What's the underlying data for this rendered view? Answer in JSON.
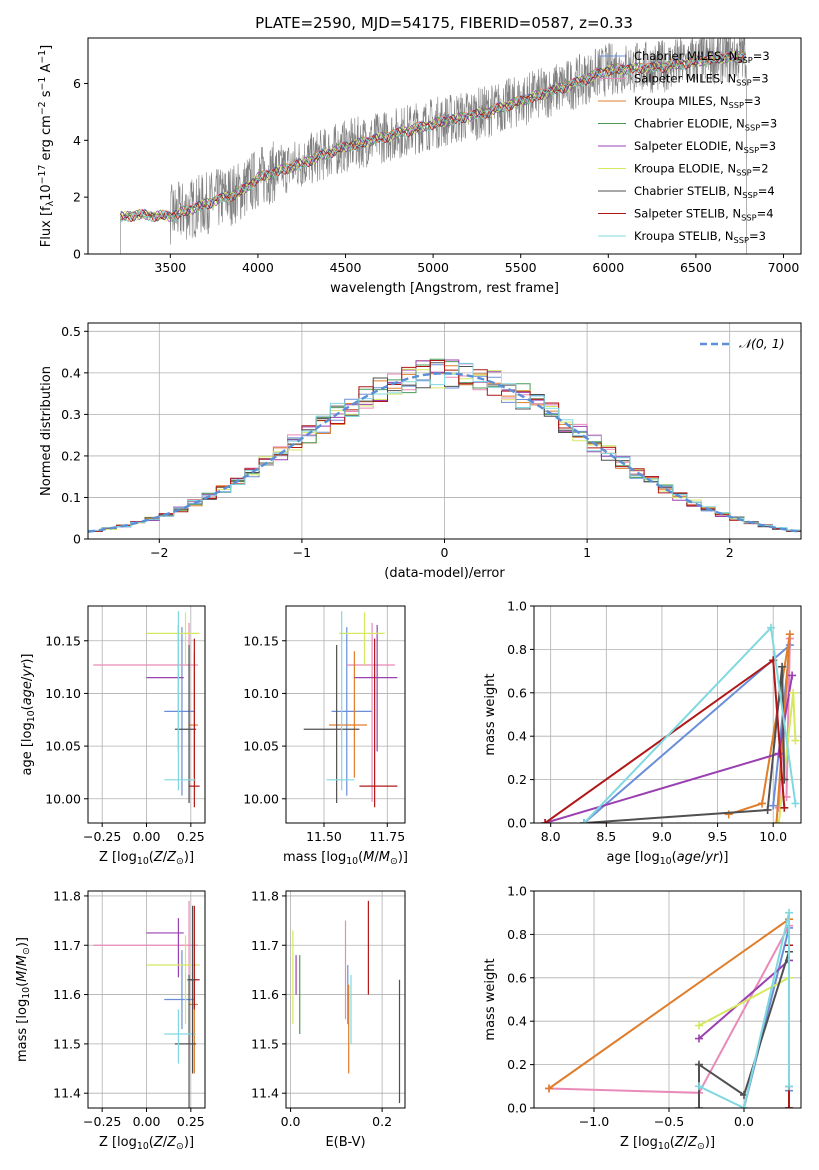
{
  "title": "PLATE=2590, MJD=54175, FIBERID=0587, z=0.33",
  "models": [
    {
      "name": "Chabrier MILES, N<sub>SSP</sub>=3",
      "color": "#6a8fd8"
    },
    {
      "name": "Salpeter MILES, N<sub>SSP</sub>=3",
      "color": "#e98ab8"
    },
    {
      "name": "Kroupa MILES, N<sub>SSP</sub>=3",
      "color": "#e07d2a"
    },
    {
      "name": "Chabrier ELODIE, N<sub>SSP</sub>=3",
      "color": "#4c9a58"
    },
    {
      "name": "Salpeter ELODIE, N<sub>SSP</sub>=3",
      "color": "#9a40b0"
    },
    {
      "name": "Kroupa ELODIE, N<sub>SSP</sub>=2",
      "color": "#d6e860"
    },
    {
      "name": "Chabrier STELIB, N<sub>SSP</sub>=4",
      "color": "#505050"
    },
    {
      "name": "Salpeter STELIB, N<sub>SSP</sub>=4",
      "color": "#b01818"
    },
    {
      "name": "Kroupa STELIB, N<sub>SSP</sub>=3",
      "color": "#80d8e0"
    }
  ],
  "chart_data": [
    {
      "id": "spectrum",
      "type": "line",
      "xlabel": "wavelength [Angstrom, rest frame]",
      "ylabel": "Flux [f<sub>λ</sub>10<sup>−17</sup> erg cm<sup>−2</sup> s<sup>−1</sup> A<sup>−1</sup>]",
      "xlim": [
        3030,
        7100
      ],
      "ylim": [
        0,
        7.6
      ],
      "xticks": [
        3500,
        4000,
        4500,
        5000,
        5500,
        6000,
        6500,
        7000
      ],
      "yticks": [
        0,
        2,
        4,
        6
      ],
      "data_color": "#808080",
      "data_start": 3215,
      "data_end": 6790,
      "continuum": {
        "x": [
          3215,
          3300,
          3500,
          3900,
          4000,
          4200,
          4500,
          4700,
          5000,
          5300,
          5600,
          5800,
          6000,
          6300,
          6600,
          6790
        ],
        "y": [
          1.3,
          1.4,
          1.35,
          2.2,
          2.7,
          3.1,
          3.8,
          4.1,
          4.6,
          5.0,
          5.6,
          6.0,
          6.5,
          6.6,
          6.9,
          7.0
        ]
      }
    },
    {
      "id": "residuals",
      "type": "histogram",
      "xlabel": "(data-model)/error",
      "ylabel": "Normed distribution",
      "xlim": [
        -2.5,
        2.5
      ],
      "ylim": [
        0,
        0.52
      ],
      "xticks": [
        -2,
        -1,
        0,
        1,
        2
      ],
      "yticks": [
        0,
        0.1,
        0.2,
        0.3,
        0.4,
        0.5
      ],
      "reference_label": "𝒩(0, 1)",
      "reference_color": "#5b8fd6",
      "bin_width": 0.1
    },
    {
      "id": "age_vs_Z",
      "type": "errorbar",
      "xlabel": "Z [log<sub>10</sub>(<i>Z</i>/<i>Z</i><sub>⊙</sub>)]",
      "ylabel": "age  [log<sub>10</sub>(<i>age</i>/<i>yr</i>)]",
      "xlim": [
        -0.33,
        0.33
      ],
      "ylim": [
        9.977,
        10.183
      ],
      "xticks": [
        -0.25,
        0,
        0.25
      ],
      "xticklabels": [
        "−0.25",
        "0.00",
        "0.25"
      ],
      "yticks": [
        10.0,
        10.05,
        10.1,
        10.15
      ],
      "yticklabels": [
        "10.00",
        "10.05",
        "10.10",
        "10.15"
      ],
      "points": [
        {
          "model": 0,
          "x": 0.2,
          "xerr": [
            0.1,
            0.07
          ],
          "y": 10.083,
          "yerr": [
            0.08,
            0.08
          ]
        },
        {
          "model": 1,
          "x": 0.24,
          "xerr": [
            0.54,
            0.05
          ],
          "y": 10.127,
          "yerr": [
            0.13,
            0.04
          ]
        },
        {
          "model": 2,
          "x": 0.27,
          "xerr": [
            0.03,
            0.02
          ],
          "y": 10.07,
          "yerr": [
            0.05,
            0.07
          ]
        },
        {
          "model": 4,
          "x": 0.18,
          "xerr": [
            0.18,
            0.03
          ],
          "y": 10.115,
          "yerr": [
            0.07,
            0.05
          ]
        },
        {
          "model": 5,
          "x": 0.22,
          "xerr": [
            0.22,
            0.08
          ],
          "y": 10.157,
          "yerr": [
            0.03,
            0.02
          ]
        },
        {
          "model": 6,
          "x": 0.24,
          "xerr": [
            0.08,
            0.04
          ],
          "y": 10.066,
          "yerr": [
            0.07,
            0.08
          ]
        },
        {
          "model": 7,
          "x": 0.27,
          "xerr": [
            0.03,
            0.03
          ],
          "y": 10.012,
          "yerr": [
            0.02,
            0.14
          ]
        },
        {
          "model": 8,
          "x": 0.18,
          "xerr": [
            0.08,
            0.1
          ],
          "y": 10.018,
          "yerr": [
            0.01,
            0.16
          ]
        }
      ]
    },
    {
      "id": "age_vs_mass",
      "type": "errorbar",
      "xlabel": "mass [log<sub>10</sub>(<i>M</i>/<i>M</i><sub>⊙</sub>)]",
      "ylabel": "",
      "xlim": [
        11.35,
        11.82
      ],
      "ylim": [
        9.977,
        10.183
      ],
      "xticks": [
        11.5,
        11.75
      ],
      "xticklabels": [
        "11.50",
        "11.75"
      ],
      "yticks": [
        10.0,
        10.05,
        10.1,
        10.15
      ],
      "yticklabels": [
        "10.00",
        "10.05",
        "10.10",
        "10.15"
      ],
      "points": [
        {
          "model": 0,
          "x": 11.59,
          "xerr": [
            0.06,
            0.1
          ],
          "y": 10.083,
          "yerr": [
            0.08,
            0.08
          ]
        },
        {
          "model": 1,
          "x": 11.69,
          "xerr": [
            0.1,
            0.09
          ],
          "y": 10.127,
          "yerr": [
            0.13,
            0.04
          ]
        },
        {
          "model": 2,
          "x": 11.62,
          "xerr": [
            0.1,
            0.05
          ],
          "y": 10.07,
          "yerr": [
            0.05,
            0.07
          ]
        },
        {
          "model": 4,
          "x": 11.71,
          "xerr": [
            0.09,
            0.08
          ],
          "y": 10.115,
          "yerr": [
            0.07,
            0.05
          ]
        },
        {
          "model": 5,
          "x": 11.66,
          "xerr": [
            0.1,
            0.08
          ],
          "y": 10.157,
          "yerr": [
            0.03,
            0.02
          ]
        },
        {
          "model": 6,
          "x": 11.55,
          "xerr": [
            0.13,
            0.09
          ],
          "y": 10.066,
          "yerr": [
            0.07,
            0.08
          ]
        },
        {
          "model": 7,
          "x": 11.7,
          "xerr": [
            0.06,
            0.09
          ],
          "y": 10.012,
          "yerr": [
            0.02,
            0.14
          ]
        },
        {
          "model": 8,
          "x": 11.57,
          "xerr": [
            0.06,
            0.05
          ],
          "y": 10.018,
          "yerr": [
            0.01,
            0.16
          ]
        }
      ]
    },
    {
      "id": "weight_vs_age",
      "type": "line",
      "xlabel": "age  [log<sub>10</sub>(<i>age</i>/<i>yr</i>)]",
      "ylabel": "mass weight",
      "xlim": [
        7.85,
        10.25
      ],
      "ylim": [
        0,
        1
      ],
      "xticks": [
        8.0,
        8.5,
        9.0,
        9.5,
        10.0
      ],
      "xticklabels": [
        "8.0",
        "8.5",
        "9.0",
        "9.5",
        "10.0"
      ],
      "yticks": [
        0,
        0.2,
        0.4,
        0.6,
        0.8,
        1.0
      ],
      "yticklabels": [
        "0.0",
        "0.2",
        "0.4",
        "0.6",
        "0.8",
        "1.0"
      ],
      "series": [
        {
          "model": 0,
          "x": [
            8.3,
            10.15,
            10.0
          ],
          "y": [
            0.0,
            0.82,
            0.08
          ]
        },
        {
          "model": 1,
          "x": [
            10.05,
            10.15,
            10.12
          ],
          "y": [
            0.07,
            0.85,
            0.12
          ]
        },
        {
          "model": 2,
          "x": [
            9.6,
            9.9,
            10.15,
            10.03
          ],
          "y": [
            0.04,
            0.09,
            0.87,
            0.0
          ]
        },
        {
          "model": 4,
          "x": [
            7.95,
            10.05,
            10.17
          ],
          "y": [
            0.0,
            0.32,
            0.68
          ]
        },
        {
          "model": 5,
          "x": [
            10.05,
            10.18,
            10.2
          ],
          "y": [
            0.0,
            0.6,
            0.38
          ]
        },
        {
          "model": 6,
          "x": [
            8.3,
            9.95,
            10.08,
            10.1
          ],
          "y": [
            0.0,
            0.06,
            0.72,
            0.2
          ]
        },
        {
          "model": 7,
          "x": [
            7.95,
            10.0,
            10.1
          ],
          "y": [
            0.0,
            0.75,
            0.07
          ]
        },
        {
          "model": 8,
          "x": [
            8.3,
            9.98,
            10.2
          ],
          "y": [
            0.0,
            0.9,
            0.09
          ]
        }
      ]
    },
    {
      "id": "mass_vs_Z",
      "type": "errorbar",
      "xlabel": "Z [log<sub>10</sub>(<i>Z</i>/<i>Z</i><sub>⊙</sub>)]",
      "ylabel": "mass [log<sub>10</sub>(<i>M</i>/<i>M</i><sub>⊙</sub>)]",
      "xlim": [
        -0.33,
        0.33
      ],
      "ylim": [
        11.37,
        11.81
      ],
      "xticks": [
        -0.25,
        0,
        0.25
      ],
      "xticklabels": [
        "−0.25",
        "0.00",
        "0.25"
      ],
      "yticks": [
        11.4,
        11.5,
        11.6,
        11.7,
        11.8
      ],
      "yticklabels": [
        "11.4",
        "11.5",
        "11.6",
        "11.7",
        "11.8"
      ],
      "points": [
        {
          "model": 0,
          "x": 0.2,
          "xerr": [
            0.1,
            0.07
          ],
          "y": 11.59,
          "yerr": [
            0.06,
            0.1
          ]
        },
        {
          "model": 1,
          "x": 0.24,
          "xerr": [
            0.54,
            0.05
          ],
          "y": 11.7,
          "yerr": [
            0.1,
            0.09
          ]
        },
        {
          "model": 2,
          "x": 0.27,
          "xerr": [
            0.03,
            0.02
          ],
          "y": 11.58,
          "yerr": [
            0.14,
            0.05
          ]
        },
        {
          "model": 4,
          "x": 0.18,
          "xerr": [
            0.18,
            0.03
          ],
          "y": 11.725,
          "yerr": [
            0.09,
            0.03
          ]
        },
        {
          "model": 5,
          "x": 0.22,
          "xerr": [
            0.22,
            0.08
          ],
          "y": 11.66,
          "yerr": [
            0.12,
            0.06
          ]
        },
        {
          "model": 6,
          "x": 0.24,
          "xerr": [
            0.08,
            0.04
          ],
          "y": 11.5,
          "yerr": [
            0.13,
            0.14
          ]
        },
        {
          "model": 7,
          "x": 0.27,
          "xerr": [
            0.03,
            0.03
          ],
          "y": 11.63,
          "yerr": [
            0.06,
            0.15
          ]
        },
        {
          "model": 8,
          "x": 0.18,
          "xerr": [
            0.08,
            0.1
          ],
          "y": 11.52,
          "yerr": [
            0.06,
            0.05
          ]
        },
        {
          "model": 6,
          "x": 0.26,
          "xerr": [
            0.03,
            0.02
          ],
          "y": 11.63,
          "yerr": [
            0.19,
            0.15
          ]
        }
      ]
    },
    {
      "id": "mass_vs_ebv",
      "type": "errorbar",
      "xlabel": "E(B-V)",
      "ylabel": "",
      "xlim": [
        -0.01,
        0.25
      ],
      "ylim": [
        11.37,
        11.81
      ],
      "xticks": [
        0,
        0.2
      ],
      "xticklabels": [
        "0.0",
        "0.2"
      ],
      "yticks": [
        11.4,
        11.5,
        11.6,
        11.7,
        11.8
      ],
      "yticklabels": [
        "11.4",
        "11.5",
        "11.6",
        "11.7",
        "11.8"
      ],
      "points": [
        {
          "model": 5,
          "x": 0.005,
          "y": 11.63,
          "yerr": [
            0.09,
            0.1
          ]
        },
        {
          "model": 4,
          "x": 0.012,
          "y": 11.64,
          "yerr": [
            0.04,
            0.04
          ]
        },
        {
          "model": 3,
          "x": 0.02,
          "y": 11.6,
          "yerr": [
            0.08,
            0.08
          ]
        },
        {
          "model": 1,
          "x": 0.12,
          "y": 11.65,
          "yerr": [
            0.1,
            0.1
          ]
        },
        {
          "model": 0,
          "x": 0.125,
          "y": 11.6,
          "yerr": [
            0.06,
            0.06
          ]
        },
        {
          "model": 2,
          "x": 0.127,
          "y": 11.53,
          "yerr": [
            0.09,
            0.09
          ]
        },
        {
          "model": 8,
          "x": 0.132,
          "y": 11.57,
          "yerr": [
            0.07,
            0.07
          ]
        },
        {
          "model": 7,
          "x": 0.17,
          "y": 11.7,
          "yerr": [
            0.1,
            0.09
          ]
        },
        {
          "model": 6,
          "x": 0.238,
          "y": 11.51,
          "yerr": [
            0.13,
            0.12
          ]
        }
      ]
    },
    {
      "id": "weight_vs_Z",
      "type": "line",
      "xlabel": "Z [log<sub>10</sub>(<i>Z</i>/<i>Z</i><sub>⊙</sub>)]",
      "ylabel": "mass weight",
      "xlim": [
        -1.4,
        0.38
      ],
      "ylim": [
        0,
        1
      ],
      "xticks": [
        -1.0,
        -0.5,
        0.0
      ],
      "xticklabels": [
        "−1.0",
        "−0.5",
        "0.0"
      ],
      "yticks": [
        0,
        0.2,
        0.4,
        0.6,
        0.8,
        1.0
      ],
      "yticklabels": [
        "0.0",
        "0.2",
        "0.4",
        "0.6",
        "0.8",
        "1.0"
      ],
      "series": [
        {
          "model": 0,
          "x": [
            0.0,
            0.3,
            0.3
          ],
          "y": [
            0.0,
            0.83,
            0.08
          ]
        },
        {
          "model": 1,
          "x": [
            -1.3,
            -0.3,
            0.3,
            0.3
          ],
          "y": [
            0.09,
            0.07,
            0.84,
            0.1
          ]
        },
        {
          "model": 2,
          "x": [
            -1.3,
            0.3,
            0.3
          ],
          "y": [
            0.09,
            0.87,
            0.0
          ]
        },
        {
          "model": 4,
          "x": [
            -0.3,
            0.3,
            0.3
          ],
          "y": [
            0.32,
            0.68,
            0.0
          ]
        },
        {
          "model": 5,
          "x": [
            -0.3,
            0.3
          ],
          "y": [
            0.38,
            0.6
          ]
        },
        {
          "model": 6,
          "x": [
            -0.3,
            -0.3,
            0.0,
            0.3,
            0.3
          ],
          "y": [
            0.0,
            0.2,
            0.06,
            0.72,
            0.1
          ]
        },
        {
          "model": 7,
          "x": [
            0.3,
            0.3
          ],
          "y": [
            0.75,
            0.0
          ]
        },
        {
          "model": 8,
          "x": [
            -0.3,
            0.0,
            0.3,
            0.3
          ],
          "y": [
            0.1,
            0.0,
            0.9,
            0.1
          ]
        }
      ]
    }
  ]
}
